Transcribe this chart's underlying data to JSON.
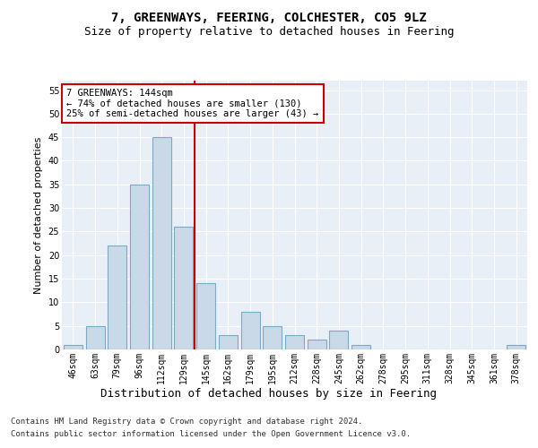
{
  "title": "7, GREENWAYS, FEERING, COLCHESTER, CO5 9LZ",
  "subtitle": "Size of property relative to detached houses in Feering",
  "xlabel": "Distribution of detached houses by size in Feering",
  "ylabel": "Number of detached properties",
  "bar_labels": [
    "46sqm",
    "63sqm",
    "79sqm",
    "96sqm",
    "112sqm",
    "129sqm",
    "145sqm",
    "162sqm",
    "179sqm",
    "195sqm",
    "212sqm",
    "228sqm",
    "245sqm",
    "262sqm",
    "278sqm",
    "295sqm",
    "311sqm",
    "328sqm",
    "345sqm",
    "361sqm",
    "378sqm"
  ],
  "bar_values": [
    1,
    5,
    22,
    35,
    45,
    26,
    14,
    3,
    8,
    5,
    3,
    2,
    4,
    1,
    0,
    0,
    0,
    0,
    0,
    0,
    1
  ],
  "bar_color": "#c9d9e8",
  "bar_edge_color": "#7aaac8",
  "bar_linewidth": 0.8,
  "vline_x": 5.5,
  "vline_color": "#cc0000",
  "ylim": [
    0,
    57
  ],
  "yticks": [
    0,
    5,
    10,
    15,
    20,
    25,
    30,
    35,
    40,
    45,
    50,
    55
  ],
  "annotation_text": "7 GREENWAYS: 144sqm\n← 74% of detached houses are smaller (130)\n25% of semi-detached houses are larger (43) →",
  "annotation_box_color": "#ffffff",
  "annotation_box_edge": "#cc0000",
  "footer_line1": "Contains HM Land Registry data © Crown copyright and database right 2024.",
  "footer_line2": "Contains public sector information licensed under the Open Government Licence v3.0.",
  "plot_bg_color": "#e8eff7",
  "title_fontsize": 10,
  "subtitle_fontsize": 9,
  "xlabel_fontsize": 9,
  "ylabel_fontsize": 8,
  "tick_fontsize": 7,
  "footer_fontsize": 6.5,
  "annotation_fontsize": 7.5
}
